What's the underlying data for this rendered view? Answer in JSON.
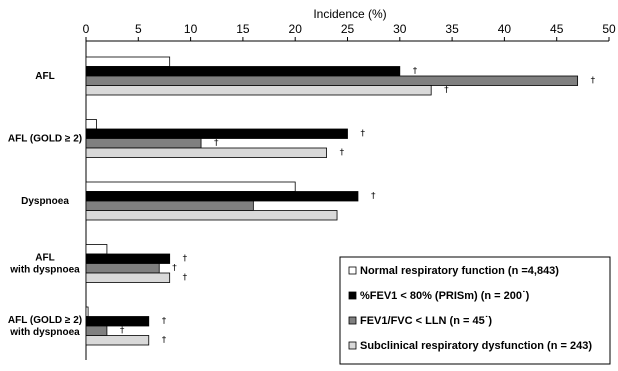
{
  "chart_data": {
    "type": "bar",
    "orientation": "horizontal",
    "xlabel": "Incidence (%)",
    "xlim": [
      0,
      50
    ],
    "xticks": [
      0,
      5,
      10,
      15,
      20,
      25,
      30,
      35,
      40,
      45,
      50
    ],
    "axis_position": "top",
    "grid": false,
    "legend_placement": "bottom-right",
    "categories": [
      [
        "AFL"
      ],
      [
        "AFL (GOLD ≥ 2)"
      ],
      [
        "Dyspnoea"
      ],
      [
        "AFL",
        "with dyspnoea"
      ],
      [
        "AFL (GOLD ≥ 2)",
        "with dyspnoea"
      ]
    ],
    "series": [
      {
        "name": "Normal respiratory function (n =4,843)",
        "color": "#ffffff",
        "values": [
          8,
          1,
          20,
          2,
          0.2
        ],
        "markers": [
          "",
          "",
          "",
          "",
          ""
        ]
      },
      {
        "name": "%FEV1 < 80% (PRISm) (n = 200˙)",
        "color": "#000000",
        "values": [
          30,
          25,
          26,
          8,
          6
        ],
        "markers": [
          "†",
          "†",
          "†",
          "†",
          "†"
        ]
      },
      {
        "name": "FEV1/FVC < LLN (n = 45˙)",
        "color": "#808080",
        "values": [
          47,
          11,
          16,
          7,
          2
        ],
        "markers": [
          "†",
          "†",
          "",
          "†",
          "†"
        ]
      },
      {
        "name": "Subclinical respiratory dysfunction (n = 243)",
        "color": "#d9d9d9",
        "values": [
          33,
          23,
          24,
          8,
          6
        ],
        "markers": [
          "†",
          "†",
          "",
          "†",
          "†"
        ]
      }
    ]
  }
}
